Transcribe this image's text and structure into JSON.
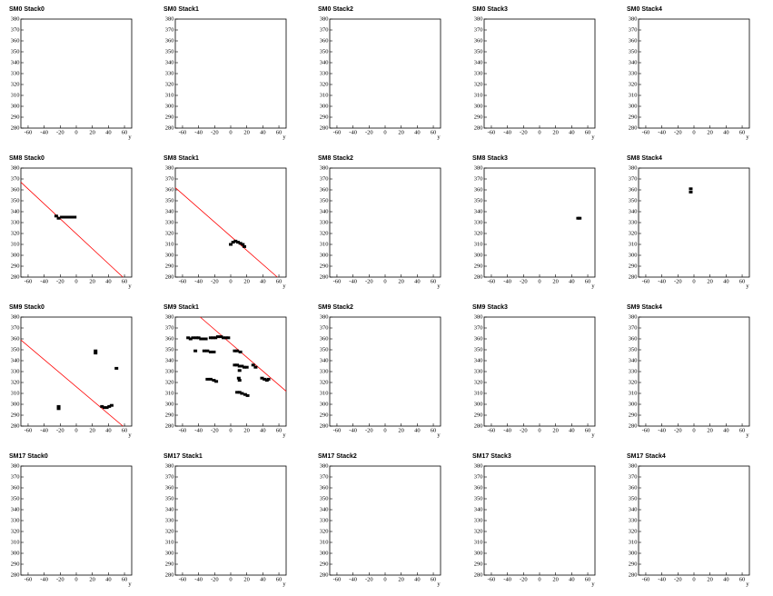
{
  "chart_data": [
    {
      "type": "scatter",
      "title": "SM0 Stack0",
      "x_label": "y",
      "xlim": [
        -69,
        69
      ],
      "ylim": [
        280,
        380
      ],
      "xticks": [
        -60,
        -40,
        -20,
        0,
        20,
        40,
        60
      ],
      "yticks": [
        280,
        290,
        300,
        310,
        320,
        330,
        340,
        350,
        360,
        370,
        380
      ]
    },
    {
      "type": "scatter",
      "title": "SM0 Stack1",
      "x_label": "y",
      "xlim": [
        -69,
        69
      ],
      "ylim": [
        280,
        380
      ],
      "xticks": [
        -60,
        -40,
        -20,
        0,
        20,
        40,
        60
      ],
      "yticks": [
        280,
        290,
        300,
        310,
        320,
        330,
        340,
        350,
        360,
        370,
        380
      ]
    },
    {
      "type": "scatter",
      "title": "SM0 Stack2",
      "x_label": "y",
      "xlim": [
        -69,
        69
      ],
      "ylim": [
        280,
        380
      ],
      "xticks": [
        -60,
        -40,
        -20,
        0,
        20,
        40,
        60
      ],
      "yticks": [
        280,
        290,
        300,
        310,
        320,
        330,
        340,
        350,
        360,
        370,
        380
      ]
    },
    {
      "type": "scatter",
      "title": "SM0 Stack3",
      "x_label": "y",
      "xlim": [
        -69,
        69
      ],
      "ylim": [
        280,
        380
      ],
      "xticks": [
        -60,
        -40,
        -20,
        0,
        20,
        40,
        60
      ],
      "yticks": [
        280,
        290,
        300,
        310,
        320,
        330,
        340,
        350,
        360,
        370,
        380
      ]
    },
    {
      "type": "scatter",
      "title": "SM0 Stack4",
      "x_label": "y",
      "xlim": [
        -69,
        69
      ],
      "ylim": [
        280,
        380
      ],
      "xticks": [
        -60,
        -40,
        -20,
        0,
        20,
        40,
        60
      ],
      "yticks": [
        280,
        290,
        300,
        310,
        320,
        330,
        340,
        350,
        360,
        370,
        380
      ]
    },
    {
      "type": "scatter",
      "title": "SM8 Stack0",
      "x_label": "y",
      "xlim": [
        -69,
        69
      ],
      "ylim": [
        280,
        380
      ],
      "xticks": [
        -60,
        -40,
        -20,
        0,
        20,
        40,
        60
      ],
      "yticks": [
        280,
        290,
        300,
        310,
        320,
        330,
        340,
        350,
        360,
        370,
        380
      ],
      "series": [
        {
          "color": "#000000",
          "x": [
            -25,
            -22,
            -18,
            -14,
            -10,
            -6,
            -2
          ],
          "y": [
            336,
            334,
            335,
            335,
            335,
            335,
            335
          ]
        }
      ],
      "lines": [
        {
          "color": "#ff0000",
          "x": [
            -69,
            58
          ],
          "y": [
            367,
            280
          ]
        }
      ]
    },
    {
      "type": "scatter",
      "title": "SM8 Stack1",
      "x_label": "y",
      "xlim": [
        -69,
        69
      ],
      "ylim": [
        280,
        380
      ],
      "xticks": [
        -60,
        -40,
        -20,
        0,
        20,
        40,
        60
      ],
      "yticks": [
        280,
        290,
        300,
        310,
        320,
        330,
        340,
        350,
        360,
        370,
        380
      ],
      "series": [
        {
          "color": "#000000",
          "x": [
            0,
            3,
            6,
            9,
            12,
            15,
            17
          ],
          "y": [
            310,
            312,
            313,
            312,
            311,
            310,
            308
          ]
        }
      ],
      "lines": [
        {
          "color": "#ff0000",
          "x": [
            -69,
            58
          ],
          "y": [
            362,
            280
          ]
        }
      ]
    },
    {
      "type": "scatter",
      "title": "SM8 Stack2",
      "x_label": "y",
      "xlim": [
        -69,
        69
      ],
      "ylim": [
        280,
        380
      ],
      "xticks": [
        -60,
        -40,
        -20,
        0,
        20,
        40,
        60
      ],
      "yticks": [
        280,
        290,
        300,
        310,
        320,
        330,
        340,
        350,
        360,
        370,
        380
      ]
    },
    {
      "type": "scatter",
      "title": "SM8 Stack3",
      "x_label": "y",
      "xlim": [
        -69,
        69
      ],
      "ylim": [
        280,
        380
      ],
      "xticks": [
        -60,
        -40,
        -20,
        0,
        20,
        40,
        60
      ],
      "yticks": [
        280,
        290,
        300,
        310,
        320,
        330,
        340,
        350,
        360,
        370,
        380
      ],
      "series": [
        {
          "color": "#000000",
          "x": [
            48,
            50
          ],
          "y": [
            334,
            334
          ]
        }
      ]
    },
    {
      "type": "scatter",
      "title": "SM8 Stack4",
      "x_label": "y",
      "xlim": [
        -69,
        69
      ],
      "ylim": [
        280,
        380
      ],
      "xticks": [
        -60,
        -40,
        -20,
        0,
        20,
        40,
        60
      ],
      "yticks": [
        280,
        290,
        300,
        310,
        320,
        330,
        340,
        350,
        360,
        370,
        380
      ],
      "series": [
        {
          "color": "#000000",
          "x": [
            -4,
            -4
          ],
          "y": [
            361,
            358
          ]
        }
      ]
    },
    {
      "type": "scatter",
      "title": "SM9 Stack0",
      "x_label": "y",
      "xlim": [
        -69,
        69
      ],
      "ylim": [
        280,
        380
      ],
      "xticks": [
        -60,
        -40,
        -20,
        0,
        20,
        40,
        60
      ],
      "yticks": [
        280,
        290,
        300,
        310,
        320,
        330,
        340,
        350,
        360,
        370,
        380
      ],
      "series": [
        {
          "color": "#000000",
          "x": [
            -22,
            -22,
            24,
            24,
            50,
            32,
            35,
            38,
            41,
            44
          ],
          "y": [
            298,
            296,
            349,
            347,
            333,
            298,
            297,
            297,
            298,
            299
          ]
        }
      ],
      "lines": [
        {
          "color": "#ff0000",
          "x": [
            -69,
            58
          ],
          "y": [
            359,
            280
          ]
        }
      ]
    },
    {
      "type": "scatter",
      "title": "SM9 Stack1",
      "x_label": "y",
      "xlim": [
        -69,
        69
      ],
      "ylim": [
        280,
        380
      ],
      "xticks": [
        -60,
        -40,
        -20,
        0,
        20,
        40,
        60
      ],
      "yticks": [
        280,
        290,
        300,
        310,
        320,
        330,
        340,
        350,
        360,
        370,
        380
      ],
      "series": [
        {
          "color": "#000000",
          "x": [
            -53,
            -50,
            -47,
            -43,
            -40,
            -37,
            -34,
            -31,
            -25,
            -22,
            -19,
            -16,
            -12,
            -9,
            -6,
            -3,
            -44,
            -33,
            -29,
            -25,
            -21,
            5,
            8,
            12,
            5,
            8,
            11,
            14,
            17,
            20,
            28,
            31,
            -29,
            -25,
            -21,
            -18,
            10,
            11,
            39,
            42,
            45,
            47,
            8,
            11,
            14,
            18,
            21,
            11
          ],
          "y": [
            361,
            360,
            361,
            361,
            361,
            360,
            360,
            360,
            361,
            361,
            361,
            362,
            362,
            361,
            361,
            361,
            349,
            349,
            349,
            348,
            348,
            349,
            349,
            348,
            336,
            336,
            335,
            335,
            334,
            334,
            336,
            334,
            323,
            323,
            322,
            321,
            324,
            322,
            324,
            323,
            322,
            323,
            311,
            311,
            310,
            309,
            308,
            331
          ]
        }
      ],
      "lines": [
        {
          "color": "#ff0000",
          "x": [
            -38,
            69
          ],
          "y": [
            380,
            312
          ]
        }
      ]
    },
    {
      "type": "scatter",
      "title": "SM9 Stack2",
      "x_label": "y",
      "xlim": [
        -69,
        69
      ],
      "ylim": [
        280,
        380
      ],
      "xticks": [
        -60,
        -40,
        -20,
        0,
        20,
        40,
        60
      ],
      "yticks": [
        280,
        290,
        300,
        310,
        320,
        330,
        340,
        350,
        360,
        370,
        380
      ]
    },
    {
      "type": "scatter",
      "title": "SM9 Stack3",
      "x_label": "y",
      "xlim": [
        -69,
        69
      ],
      "ylim": [
        280,
        380
      ],
      "xticks": [
        -60,
        -40,
        -20,
        0,
        20,
        40,
        60
      ],
      "yticks": [
        280,
        290,
        300,
        310,
        320,
        330,
        340,
        350,
        360,
        370,
        380
      ]
    },
    {
      "type": "scatter",
      "title": "SM9 Stack4",
      "x_label": "y",
      "xlim": [
        -69,
        69
      ],
      "ylim": [
        280,
        380
      ],
      "xticks": [
        -60,
        -40,
        -20,
        0,
        20,
        40,
        60
      ],
      "yticks": [
        280,
        290,
        300,
        310,
        320,
        330,
        340,
        350,
        360,
        370,
        380
      ]
    },
    {
      "type": "scatter",
      "title": "SM17 Stack0",
      "x_label": "y",
      "xlim": [
        -69,
        69
      ],
      "ylim": [
        280,
        380
      ],
      "xticks": [
        -60,
        -40,
        -20,
        0,
        20,
        40,
        60
      ],
      "yticks": [
        280,
        290,
        300,
        310,
        320,
        330,
        340,
        350,
        360,
        370,
        380
      ]
    },
    {
      "type": "scatter",
      "title": "SM17 Stack1",
      "x_label": "y",
      "xlim": [
        -69,
        69
      ],
      "ylim": [
        280,
        380
      ],
      "xticks": [
        -60,
        -40,
        -20,
        0,
        20,
        40,
        60
      ],
      "yticks": [
        280,
        290,
        300,
        310,
        320,
        330,
        340,
        350,
        360,
        370,
        380
      ]
    },
    {
      "type": "scatter",
      "title": "SM17 Stack2",
      "x_label": "y",
      "xlim": [
        -69,
        69
      ],
      "ylim": [
        280,
        380
      ],
      "xticks": [
        -60,
        -40,
        -20,
        0,
        20,
        40,
        60
      ],
      "yticks": [
        280,
        290,
        300,
        310,
        320,
        330,
        340,
        350,
        360,
        370,
        380
      ]
    },
    {
      "type": "scatter",
      "title": "SM17 Stack3",
      "x_label": "y",
      "xlim": [
        -69,
        69
      ],
      "ylim": [
        280,
        380
      ],
      "xticks": [
        -60,
        -40,
        -20,
        0,
        20,
        40,
        60
      ],
      "yticks": [
        280,
        290,
        300,
        310,
        320,
        330,
        340,
        350,
        360,
        370,
        380
      ]
    },
    {
      "type": "scatter",
      "title": "SM17 Stack4",
      "x_label": "y",
      "xlim": [
        -69,
        69
      ],
      "ylim": [
        280,
        380
      ],
      "xticks": [
        -60,
        -40,
        -20,
        0,
        20,
        40,
        60
      ],
      "yticks": [
        280,
        290,
        300,
        310,
        320,
        330,
        340,
        350,
        360,
        370,
        380
      ]
    }
  ]
}
